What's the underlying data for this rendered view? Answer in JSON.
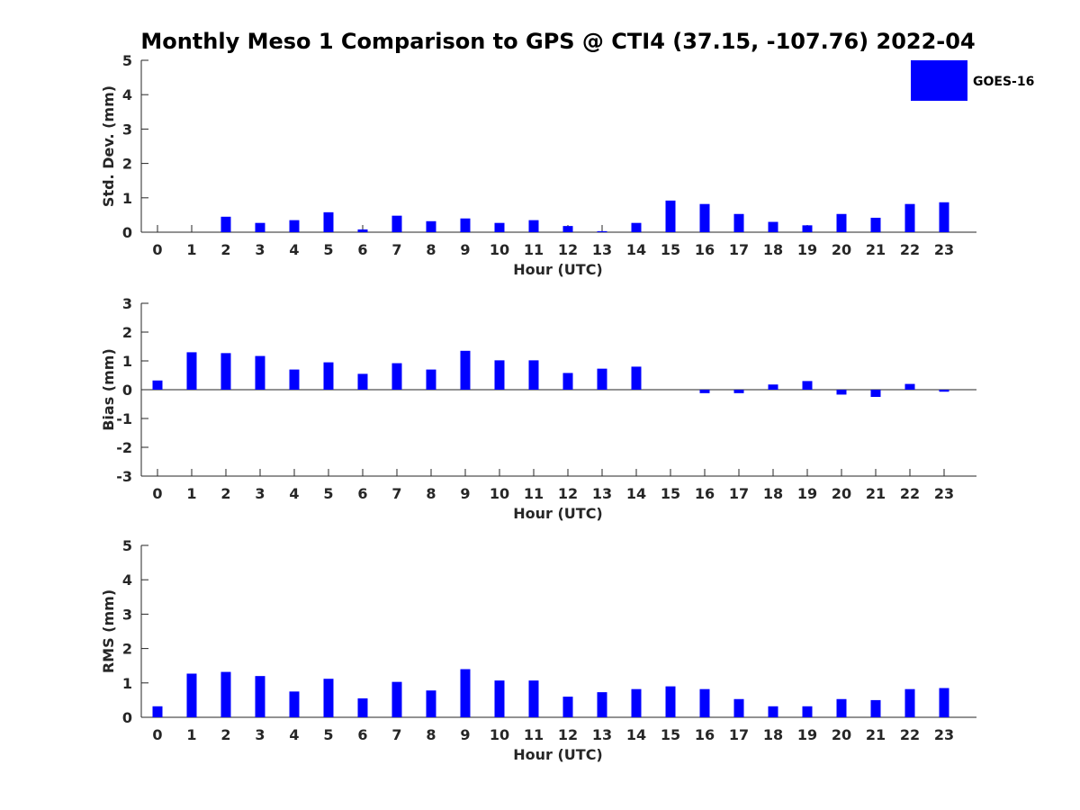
{
  "chart_data": {
    "title": "Monthly Meso 1 Comparison to GPS @ CTI4 (37.15, -107.76) 2022-04",
    "type": "bar",
    "legend": {
      "entries": [
        "GOES-16"
      ],
      "color": "#0000ff",
      "placement": "top-right"
    },
    "bar_color": "#0000ff",
    "categories": [
      "0",
      "1",
      "2",
      "3",
      "4",
      "5",
      "6",
      "7",
      "8",
      "9",
      "10",
      "11",
      "12",
      "13",
      "14",
      "15",
      "16",
      "17",
      "18",
      "19",
      "20",
      "21",
      "22",
      "23"
    ],
    "panels": [
      {
        "name": "std-dev",
        "ylabel": "Std. Dev. (mm)",
        "xlabel": "Hour (UTC)",
        "ylim": [
          0,
          5
        ],
        "yticks": [
          "0",
          "1",
          "2",
          "3",
          "4",
          "5"
        ],
        "values": [
          0,
          0,
          0.45,
          0.27,
          0.35,
          0.58,
          0.08,
          0.48,
          0.32,
          0.4,
          0.27,
          0.35,
          0.18,
          0.03,
          0.27,
          0.92,
          0.82,
          0.53,
          0.3,
          0.2,
          0.53,
          0.42,
          0.82,
          0.87
        ]
      },
      {
        "name": "bias",
        "ylabel": "Bias (mm)",
        "xlabel": "Hour (UTC)",
        "ylim": [
          -3,
          3
        ],
        "yticks": [
          "-3",
          "-2",
          "-1",
          "0",
          "1",
          "2",
          "3"
        ],
        "values": [
          0.32,
          1.3,
          1.27,
          1.17,
          0.7,
          0.95,
          0.55,
          0.92,
          0.7,
          1.35,
          1.02,
          1.02,
          0.58,
          0.73,
          0.8,
          0,
          -0.12,
          -0.12,
          0.18,
          0.3,
          -0.17,
          -0.25,
          0.2,
          -0.07
        ]
      },
      {
        "name": "rms",
        "ylabel": "RMS (mm)",
        "xlabel": "Hour (UTC)",
        "ylim": [
          0,
          5
        ],
        "yticks": [
          "0",
          "1",
          "2",
          "3",
          "4",
          "5"
        ],
        "values": [
          0.32,
          1.27,
          1.32,
          1.2,
          0.75,
          1.12,
          0.55,
          1.03,
          0.78,
          1.4,
          1.07,
          1.07,
          0.6,
          0.73,
          0.82,
          0.9,
          0.82,
          0.53,
          0.32,
          0.32,
          0.53,
          0.5,
          0.82,
          0.85
        ]
      }
    ]
  }
}
